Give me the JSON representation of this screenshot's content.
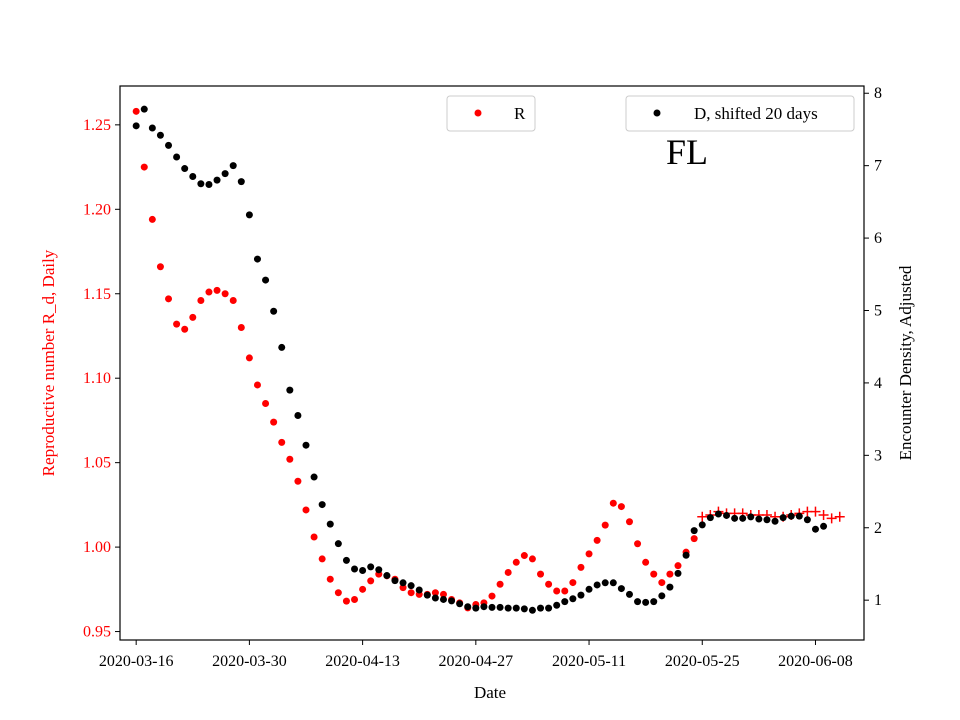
{
  "chart_data": {
    "type": "scatter",
    "xlabel": "Date",
    "ylabel_left": "Reproductive number R_d, Daily",
    "ylabel_right": "Encounter Density, Adjusted",
    "annotation": "FL",
    "x_day_range": [
      -2,
      90
    ],
    "ylim_left": [
      0.945,
      1.273
    ],
    "ylim_right": [
      0.45,
      8.1
    ],
    "x_ticks": [
      {
        "day": 0,
        "label": "2020-03-16"
      },
      {
        "day": 14,
        "label": "2020-03-30"
      },
      {
        "day": 28,
        "label": "2020-04-13"
      },
      {
        "day": 42,
        "label": "2020-04-27"
      },
      {
        "day": 56,
        "label": "2020-05-11"
      },
      {
        "day": 70,
        "label": "2020-05-25"
      },
      {
        "day": 84,
        "label": "2020-06-08"
      }
    ],
    "y_ticks_left": [
      0.95,
      1.0,
      1.05,
      1.1,
      1.15,
      1.2,
      1.25
    ],
    "y_ticks_left_labels": [
      "0.95",
      "1.00",
      "1.05",
      "1.10",
      "1.15",
      "1.20",
      "1.25"
    ],
    "y_ticks_right": [
      1,
      2,
      3,
      4,
      5,
      6,
      7,
      8
    ],
    "y_ticks_right_labels": [
      "1",
      "2",
      "3",
      "4",
      "5",
      "6",
      "7",
      "8"
    ],
    "legend_left": {
      "label": "R",
      "placement": "upper-center"
    },
    "legend_right": {
      "label": "D, shifted 20 days",
      "placement": "upper-right"
    },
    "colors": {
      "R": "#ff0000",
      "D": "#000000",
      "left_axis": "#ff0000",
      "right_axis": "#000000"
    },
    "series": [
      {
        "name": "R",
        "axis": "left",
        "marker": "dot",
        "start_day": 0,
        "values": [
          1.258,
          1.225,
          1.194,
          1.166,
          1.147,
          1.132,
          1.129,
          1.136,
          1.146,
          1.151,
          1.152,
          1.15,
          1.146,
          1.13,
          1.112,
          1.096,
          1.085,
          1.074,
          1.062,
          1.052,
          1.039,
          1.022,
          1.006,
          0.993,
          0.981,
          0.973,
          0.968,
          0.969,
          0.975,
          0.98,
          0.984,
          0.983,
          0.981,
          0.976,
          0.973,
          0.972,
          0.972,
          0.973,
          0.972,
          0.969,
          0.967,
          0.964,
          0.966,
          0.967,
          0.971,
          0.978,
          0.985,
          0.991,
          0.995,
          0.993,
          0.984,
          0.978,
          0.974,
          0.974,
          0.979,
          0.988,
          0.996,
          1.004,
          1.013,
          1.026,
          1.024,
          1.015,
          1.002,
          0.991,
          0.984,
          0.979,
          0.984,
          0.989,
          0.997,
          1.005
        ]
      },
      {
        "name": "R (recent, cross markers)",
        "axis": "left",
        "marker": "plus",
        "start_day": 70,
        "values": [
          1.018,
          1.019,
          1.021,
          1.02,
          1.02,
          1.02,
          1.019,
          1.019,
          1.019,
          1.018,
          1.018,
          1.019,
          1.02,
          1.021,
          1.021,
          1.019,
          1.017,
          1.018
        ]
      },
      {
        "name": "D, shifted 20 days",
        "axis": "right",
        "marker": "dot",
        "start_day": 0,
        "values": [
          7.55,
          7.78,
          7.52,
          7.42,
          7.28,
          7.12,
          6.96,
          6.85,
          6.75,
          6.74,
          6.8,
          6.89,
          7.0,
          6.78,
          6.32,
          5.71,
          5.42,
          4.99,
          4.49,
          3.9,
          3.55,
          3.14,
          2.7,
          2.32,
          2.05,
          1.78,
          1.55,
          1.43,
          1.41,
          1.46,
          1.42,
          1.34,
          1.27,
          1.24,
          1.2,
          1.14,
          1.07,
          1.03,
          1.01,
          0.99,
          0.95,
          0.91,
          0.89,
          0.91,
          0.9,
          0.9,
          0.89,
          0.89,
          0.88,
          0.86,
          0.89,
          0.89,
          0.93,
          0.98,
          1.02,
          1.07,
          1.15,
          1.21,
          1.24,
          1.24,
          1.16,
          1.08,
          0.98,
          0.97,
          0.98,
          1.06,
          1.18,
          1.37,
          1.62,
          1.96,
          2.04,
          2.14,
          2.19,
          2.17,
          2.13,
          2.13,
          2.15,
          2.12,
          2.11,
          2.09,
          2.14,
          2.16,
          2.16,
          2.11,
          1.98,
          2.02
        ]
      }
    ]
  }
}
